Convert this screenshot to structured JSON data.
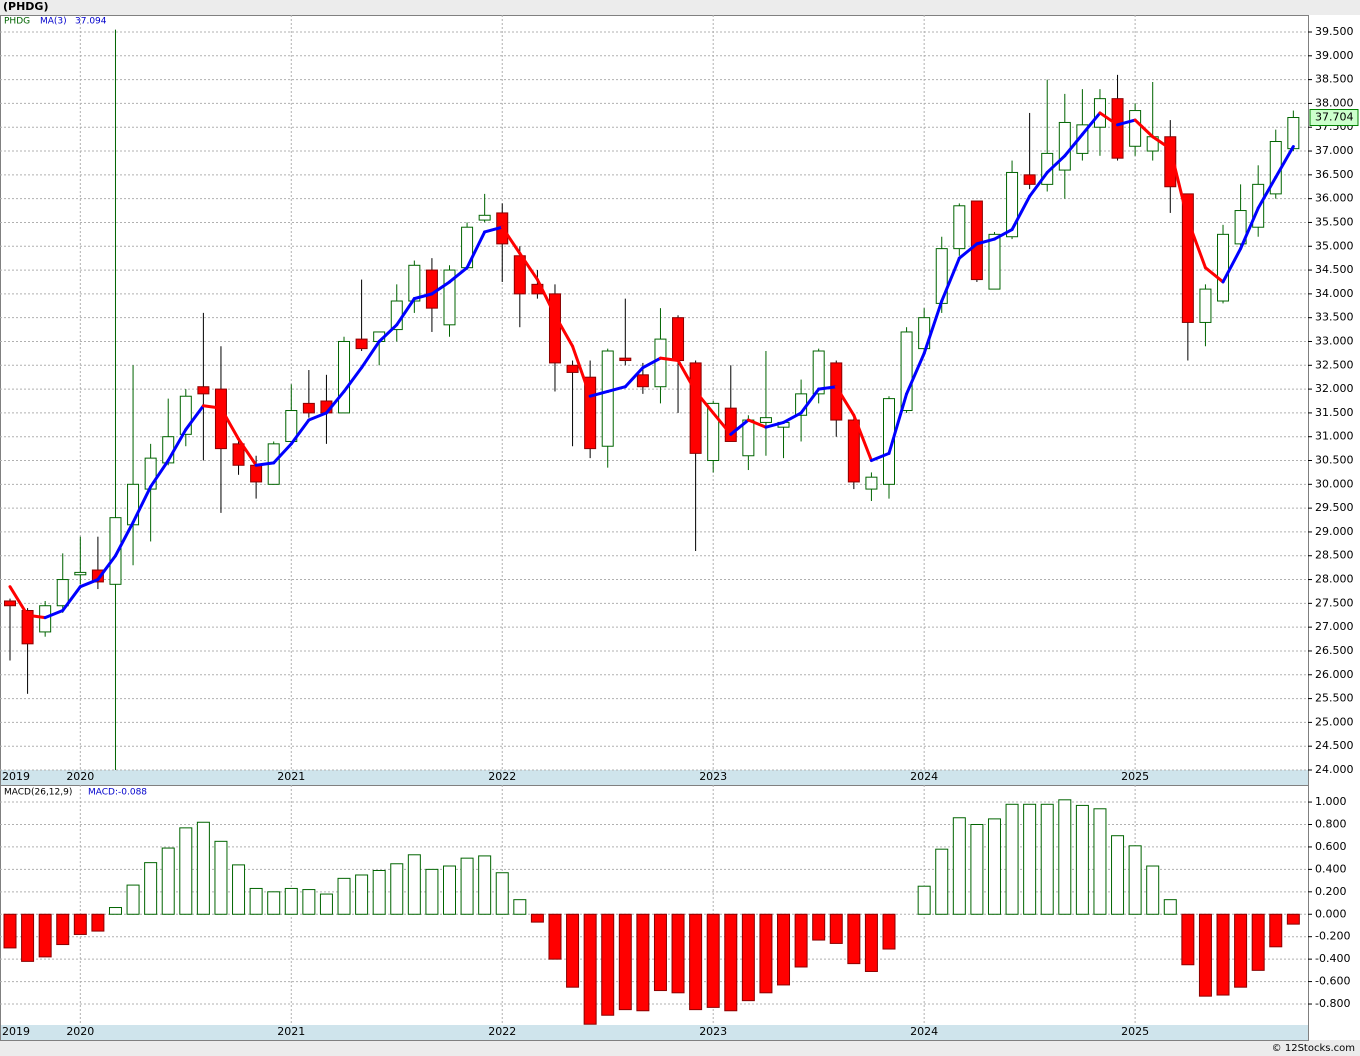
{
  "chart_data": [
    {
      "type": "candlestick",
      "title": "(PHDG)",
      "categories": [
        "2019",
        null,
        null,
        null,
        "2020",
        null,
        null,
        null,
        null,
        null,
        null,
        null,
        null,
        null,
        null,
        null,
        "2021",
        null,
        null,
        null,
        null,
        null,
        null,
        null,
        null,
        null,
        null,
        null,
        "2022",
        null,
        null,
        null,
        null,
        null,
        null,
        null,
        null,
        null,
        null,
        null,
        "2023",
        null,
        null,
        null,
        null,
        null,
        null,
        null,
        null,
        null,
        null,
        null,
        "2024",
        null,
        null,
        null,
        null,
        null,
        null,
        null,
        null,
        null,
        null,
        null,
        "2025",
        null,
        null,
        null,
        null,
        null,
        null,
        null,
        null,
        null
      ],
      "series": [
        {
          "name": "PHDG",
          "color": "#006400",
          "down_color": "#ff0000",
          "open": [
            27.55,
            27.35,
            26.9,
            27.45,
            28.1,
            28.2,
            27.9,
            29.15,
            29.9,
            30.45,
            31.05,
            32.05,
            32.0,
            30.85,
            30.4,
            30.0,
            30.9,
            31.7,
            31.75,
            31.5,
            33.05,
            33.0,
            33.25,
            33.85,
            34.5,
            33.35,
            34.55,
            35.55,
            35.7,
            34.8,
            34.2,
            34.0,
            32.5,
            32.25,
            30.8,
            32.65,
            32.3,
            32.05,
            33.5,
            32.55,
            30.5,
            31.6,
            30.6,
            31.3,
            31.2,
            31.45,
            31.9,
            32.55,
            31.35,
            29.9,
            30.0,
            31.55,
            32.85,
            33.8,
            34.95,
            35.95,
            34.1,
            35.2,
            36.5,
            36.3,
            36.6,
            36.95,
            37.5,
            38.1,
            37.1,
            37.0,
            37.3,
            36.1,
            33.4,
            33.85,
            35.05,
            35.4,
            36.1,
            37.05
          ],
          "high": [
            27.6,
            27.4,
            27.55,
            28.55,
            28.9,
            28.9,
            39.55,
            32.5,
            30.85,
            31.8,
            32.0,
            33.6,
            32.9,
            31.0,
            30.6,
            30.9,
            32.1,
            32.4,
            32.3,
            33.1,
            34.3,
            33.2,
            34.2,
            34.7,
            34.75,
            34.6,
            35.5,
            36.1,
            35.9,
            35.0,
            34.5,
            34.2,
            32.6,
            32.6,
            32.85,
            33.9,
            32.55,
            33.7,
            33.55,
            32.6,
            31.75,
            32.5,
            31.45,
            32.8,
            31.3,
            32.2,
            32.85,
            32.6,
            31.4,
            30.25,
            31.85,
            33.3,
            33.7,
            35.2,
            35.9,
            35.95,
            35.3,
            36.8,
            37.8,
            38.5,
            38.2,
            38.3,
            38.3,
            38.6,
            38.0,
            38.45,
            37.65,
            36.1,
            34.2,
            35.45,
            36.3,
            36.7,
            37.45,
            37.85
          ],
          "low": [
            26.3,
            25.6,
            26.8,
            27.3,
            27.9,
            27.8,
            24.0,
            28.3,
            28.8,
            30.4,
            30.8,
            30.5,
            29.4,
            30.2,
            29.7,
            30.0,
            30.9,
            31.4,
            30.85,
            31.5,
            32.8,
            32.5,
            33.0,
            33.6,
            33.2,
            33.1,
            34.5,
            35.5,
            34.25,
            33.3,
            33.9,
            31.95,
            30.8,
            30.55,
            30.35,
            32.5,
            31.9,
            31.7,
            31.5,
            28.6,
            30.25,
            30.9,
            30.3,
            30.6,
            30.55,
            30.9,
            31.7,
            31.0,
            29.9,
            29.65,
            29.7,
            31.5,
            32.7,
            33.6,
            34.8,
            34.25,
            34.1,
            35.15,
            36.2,
            36.15,
            36.0,
            36.8,
            36.9,
            36.8,
            36.9,
            36.8,
            35.7,
            32.6,
            32.9,
            33.8,
            35.0,
            35.2,
            36.0,
            37.0
          ],
          "close": [
            27.45,
            26.65,
            27.45,
            28.0,
            28.15,
            27.95,
            29.3,
            30.0,
            30.55,
            31.0,
            31.85,
            31.9,
            30.75,
            30.4,
            30.05,
            30.85,
            31.55,
            31.5,
            31.5,
            33.0,
            32.85,
            33.2,
            33.85,
            34.6,
            33.7,
            34.5,
            35.4,
            35.65,
            35.05,
            34.0,
            34.0,
            32.55,
            32.35,
            30.75,
            32.8,
            32.6,
            32.05,
            33.05,
            32.6,
            30.65,
            31.7,
            30.9,
            31.35,
            31.4,
            31.3,
            31.9,
            32.8,
            31.35,
            30.05,
            30.15,
            31.8,
            33.2,
            33.5,
            34.95,
            35.85,
            34.3,
            35.25,
            36.55,
            36.3,
            36.95,
            37.6,
            37.55,
            38.1,
            36.85,
            37.85,
            37.3,
            36.25,
            33.4,
            34.1,
            35.25,
            35.75,
            36.3,
            37.2,
            37.704
          ]
        }
      ],
      "last_price_label": "37.704",
      "ma": {
        "name": "MA(3)",
        "value_label": "37.094",
        "up_color": "#0000ff",
        "down_color": "#ff0000",
        "values": [
          27.85,
          27.25,
          27.2,
          27.35,
          27.85,
          28.0,
          28.5,
          29.2,
          29.95,
          30.5,
          31.15,
          31.65,
          31.6,
          30.95,
          30.4,
          30.45,
          30.85,
          31.35,
          31.5,
          31.95,
          32.45,
          33.0,
          33.35,
          33.9,
          34.0,
          34.25,
          34.55,
          35.3,
          35.4,
          34.85,
          34.3,
          33.55,
          32.9,
          31.85,
          31.95,
          32.05,
          32.45,
          32.65,
          32.6,
          31.95,
          31.5,
          31.05,
          31.35,
          31.2,
          31.3,
          31.5,
          32.0,
          32.05,
          31.45,
          30.5,
          30.65,
          31.9,
          32.75,
          33.85,
          34.75,
          35.05,
          35.15,
          35.35,
          36.05,
          36.55,
          36.9,
          37.35,
          37.8,
          37.55,
          37.65,
          37.3,
          37.05,
          35.55,
          34.55,
          34.25,
          34.95,
          35.8,
          36.45,
          37.094
        ]
      },
      "ylim": [
        24.0,
        39.857
      ],
      "yticks": [
        {
          "value": 24,
          "label": "24.000"
        },
        {
          "value": 24.5,
          "label": "24.500"
        },
        {
          "value": 25,
          "label": "25.000"
        },
        {
          "value": 25.5,
          "label": "25.500"
        },
        {
          "value": 26,
          "label": "26.000"
        },
        {
          "value": 26.5,
          "label": "26.500"
        },
        {
          "value": 27,
          "label": "27.000"
        },
        {
          "value": 27.5,
          "label": "27.500"
        },
        {
          "value": 28,
          "label": "28.000"
        },
        {
          "value": 28.5,
          "label": "28.500"
        },
        {
          "value": 29,
          "label": "29.000"
        },
        {
          "value": 29.5,
          "label": "29.500"
        },
        {
          "value": 30,
          "label": "30.000"
        },
        {
          "value": 30.5,
          "label": "30.500"
        },
        {
          "value": 31,
          "label": "31.000"
        },
        {
          "value": 31.5,
          "label": "31.500"
        },
        {
          "value": 32,
          "label": "32.000"
        },
        {
          "value": 32.5,
          "label": "32.500"
        },
        {
          "value": 33,
          "label": "33.000"
        },
        {
          "value": 33.5,
          "label": "33.500"
        },
        {
          "value": 34,
          "label": "34.000"
        },
        {
          "value": 34.5,
          "label": "34.500"
        },
        {
          "value": 35,
          "label": "35.000"
        },
        {
          "value": 35.5,
          "label": "35.500"
        },
        {
          "value": 36,
          "label": "36.000"
        },
        {
          "value": 36.5,
          "label": "36.500"
        },
        {
          "value": 37,
          "label": "37.000"
        },
        {
          "value": 37.5,
          "label": "37.500"
        },
        {
          "value": 38,
          "label": "38.000"
        },
        {
          "value": 38.5,
          "label": "38.500"
        },
        {
          "value": 39,
          "label": "39.000"
        },
        {
          "value": 39.5,
          "label": "39.500"
        }
      ],
      "grid": true
    },
    {
      "type": "bar",
      "name": "MACD(26,12,9)",
      "value_label": "MACD:-0.088",
      "color": "#006400",
      "down_color": "#ff0000",
      "values": [
        -0.3,
        -0.42,
        -0.38,
        -0.27,
        -0.18,
        -0.15,
        0.06,
        0.26,
        0.46,
        0.59,
        0.77,
        0.82,
        0.65,
        0.44,
        0.23,
        0.2,
        0.23,
        0.22,
        0.18,
        0.32,
        0.35,
        0.39,
        0.45,
        0.53,
        0.4,
        0.43,
        0.5,
        0.52,
        0.37,
        0.13,
        -0.07,
        -0.4,
        -0.65,
        -0.98,
        -0.9,
        -0.85,
        -0.86,
        -0.68,
        -0.7,
        -0.85,
        -0.83,
        -0.86,
        -0.77,
        -0.7,
        -0.63,
        -0.47,
        -0.23,
        -0.26,
        -0.44,
        -0.51,
        -0.31,
        0.0,
        0.25,
        0.58,
        0.86,
        0.8,
        0.85,
        0.98,
        0.98,
        0.98,
        1.02,
        0.97,
        0.94,
        0.7,
        0.61,
        0.43,
        0.13,
        -0.45,
        -0.73,
        -0.72,
        -0.65,
        -0.5,
        -0.29,
        -0.088
      ],
      "ylim": [
        -0.987,
        1.152
      ],
      "yticks": [
        {
          "value": -0.8,
          "label": "-0.800"
        },
        {
          "value": -0.6,
          "label": "-0.600"
        },
        {
          "value": -0.4,
          "label": "-0.400"
        },
        {
          "value": -0.2,
          "label": "-0.200"
        },
        {
          "value": 0,
          "label": "0.000"
        },
        {
          "value": 0.2,
          "label": "0.200"
        },
        {
          "value": 0.4,
          "label": "0.400"
        },
        {
          "value": 0.6,
          "label": "0.600"
        },
        {
          "value": 0.8,
          "label": "0.800"
        },
        {
          "value": 1,
          "label": "1.000"
        }
      ],
      "grid": true
    }
  ],
  "footer": "© 12Stocks.com"
}
